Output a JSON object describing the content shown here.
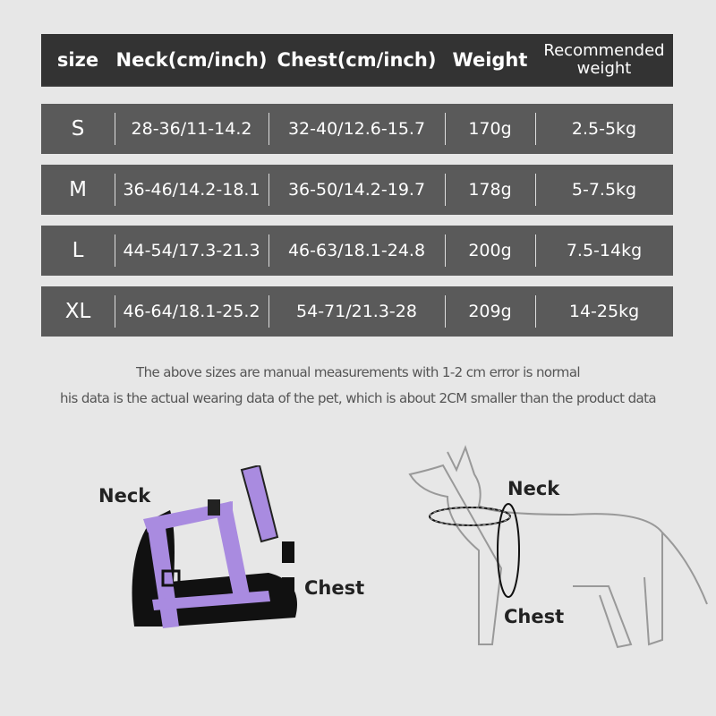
{
  "table": {
    "headers": [
      "size",
      "Neck(cm/inch)",
      "Chest(cm/inch)",
      "Weight",
      "Recommended weight"
    ],
    "rows": [
      [
        "S",
        "28-36/11-14.2",
        "32-40/12.6-15.7",
        "170g",
        "2.5-5kg"
      ],
      [
        "M",
        "36-46/14.2-18.1",
        "36-50/14.2-19.7",
        "178g",
        "5-7.5kg"
      ],
      [
        "L",
        "44-54/17.3-21.3",
        "46-63/18.1-24.8",
        "200g",
        "7.5-14kg"
      ],
      [
        "XL",
        "46-64/18.1-25.2",
        "54-71/21.3-28",
        "209g",
        "14-25kg"
      ]
    ]
  },
  "notes": [
    "The above sizes are manual measurements with 1-2 cm error is normal",
    "his data is the actual wearing data of the pet, which is about 2CM smaller than the product data"
  ],
  "harness": {
    "neck_label": "Neck",
    "chest_label": "Chest",
    "color": "#a98be0"
  },
  "dog": {
    "neck_label": "Neck",
    "chest_label": "Chest"
  }
}
